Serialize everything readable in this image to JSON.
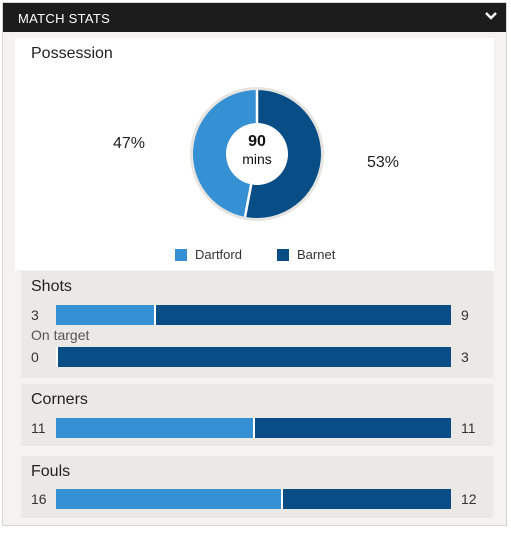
{
  "header": {
    "title": "MATCH STATS",
    "icon": "chevron-down-icon"
  },
  "colors": {
    "home": "#3591d3",
    "away": "#084d86"
  },
  "possession": {
    "title": "Possession",
    "home_pct": 47,
    "away_pct": 53,
    "home_label": "47%",
    "away_label": "53%",
    "center_value": "90",
    "center_unit": "mins"
  },
  "legend": {
    "home": "Dartford",
    "away": "Barnet"
  },
  "shots": {
    "title": "Shots",
    "total": {
      "home": 3,
      "away": 9,
      "home_label": "3",
      "away_label": "9"
    },
    "on_target_label": "On target",
    "on_target": {
      "home": 0,
      "away": 3,
      "home_label": "0",
      "away_label": "3"
    }
  },
  "corners": {
    "title": "Corners",
    "home": 11,
    "away": 11,
    "home_label": "11",
    "away_label": "11"
  },
  "fouls": {
    "title": "Fouls",
    "home": 16,
    "away": 12,
    "home_label": "16",
    "away_label": "12"
  }
}
